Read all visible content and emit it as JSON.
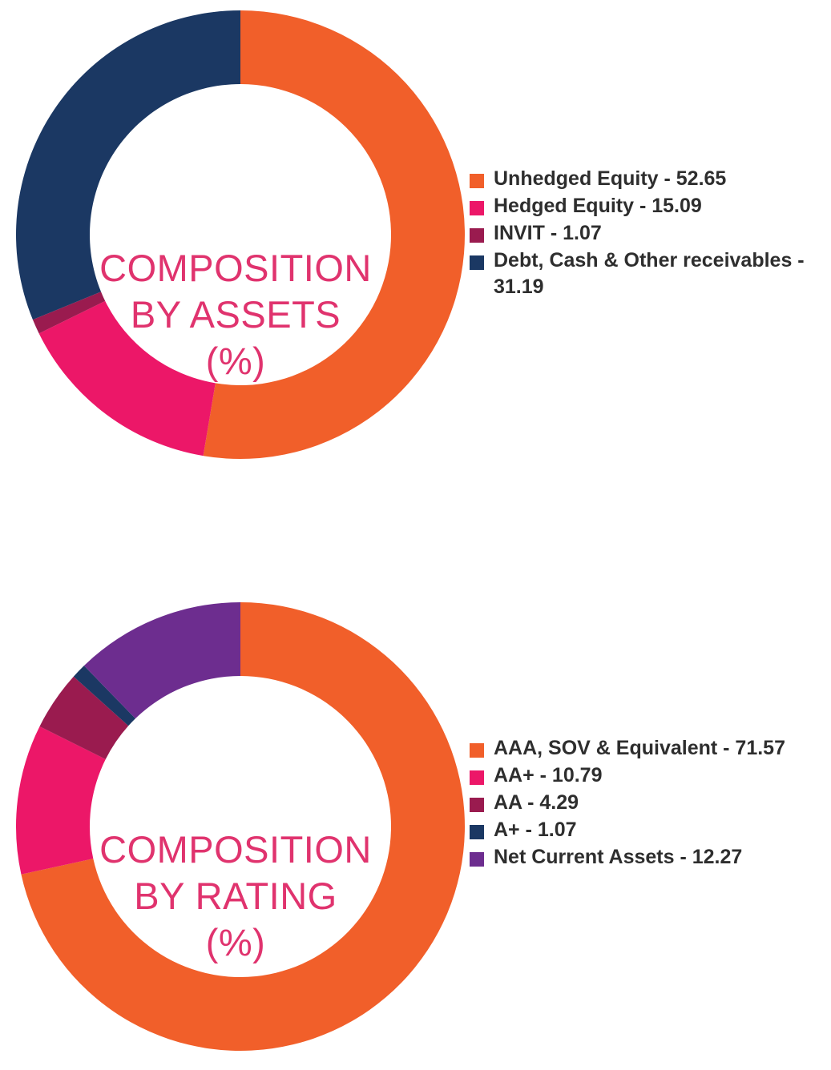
{
  "chart_data": [
    {
      "type": "pie",
      "title": [
        "COMPOSITION",
        "BY ASSETS",
        "(%)"
      ],
      "categories": [
        "Unhedged Equity",
        "Hedged Equity",
        "INVIT",
        "Debt, Cash & Other receivables"
      ],
      "values": [
        52.65,
        15.09,
        1.07,
        31.19
      ],
      "colors": [
        "#f15f2a",
        "#ec1768",
        "#9a1b4f",
        "#1b3863"
      ],
      "legend_labels": [
        "Unhedged Equity - 52.65",
        "Hedged Equity - 15.09",
        "INVIT - 1.07",
        "Debt, Cash & Other receivables - 31.19"
      ],
      "style": "donut",
      "legend": "right"
    },
    {
      "type": "pie",
      "title": [
        "COMPOSITION",
        "BY RATING",
        "(%)"
      ],
      "categories": [
        "AAA, SOV & Equivalent",
        "AA+",
        "AA",
        "A+",
        "Net Current Assets"
      ],
      "values": [
        71.57,
        10.79,
        4.29,
        1.07,
        12.27
      ],
      "colors": [
        "#f15f2a",
        "#ec1768",
        "#9a1b4f",
        "#1b3863",
        "#6d2d8f"
      ],
      "legend_labels": [
        "AAA, SOV & Equivalent - 71.57",
        "AA+ - 10.79",
        "AA - 4.29",
        "A+ - 1.07",
        "Net Current Assets - 12.27"
      ],
      "style": "donut",
      "legend": "right"
    }
  ]
}
